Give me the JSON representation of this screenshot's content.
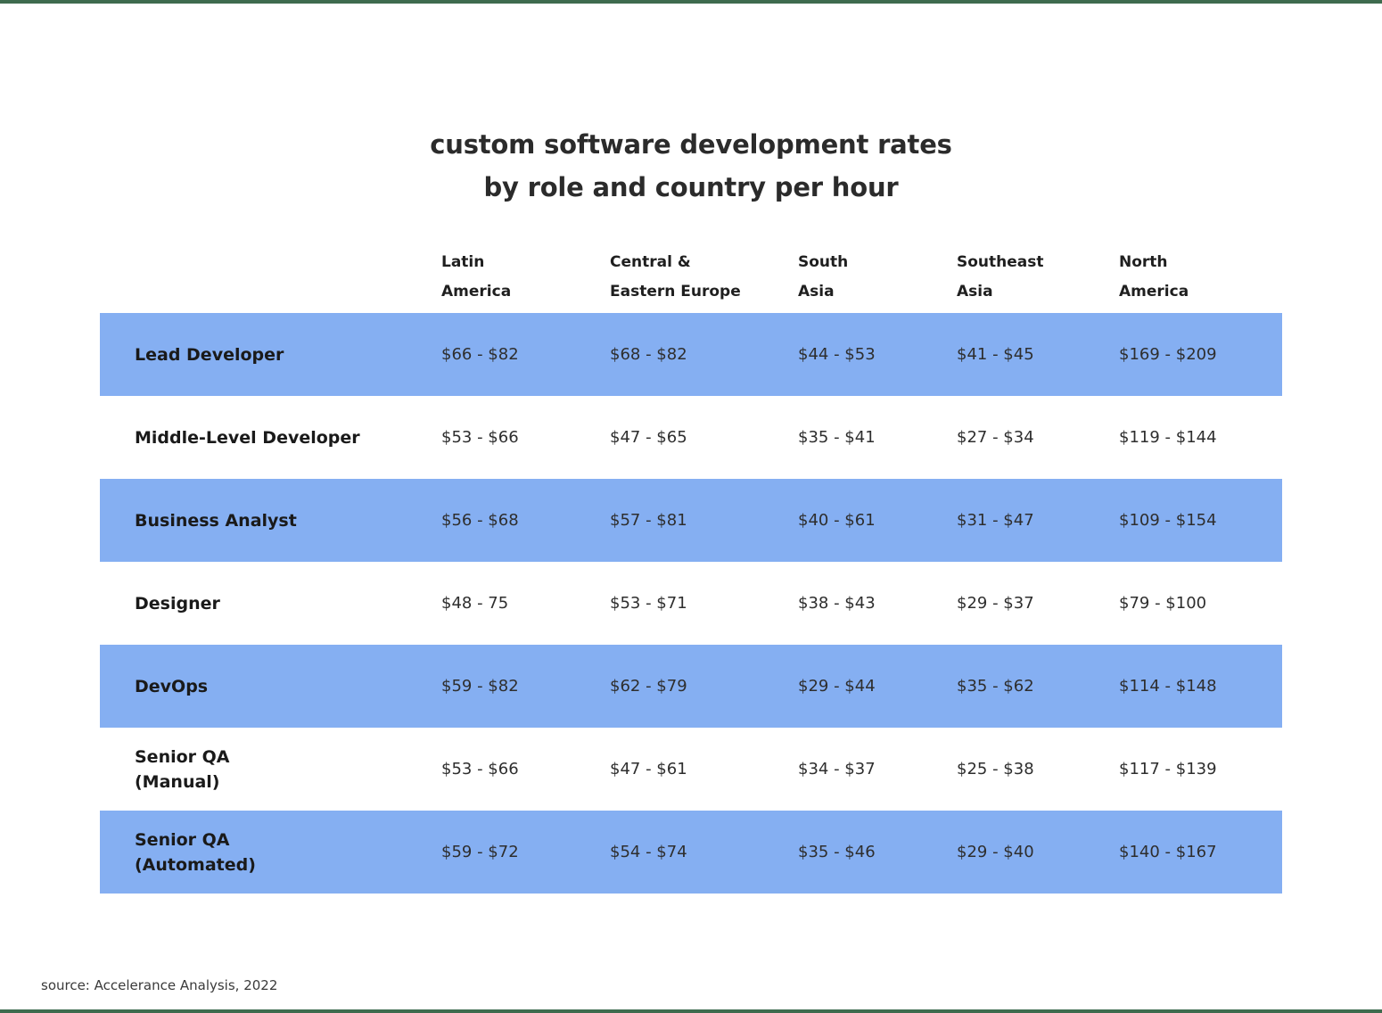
{
  "title": {
    "line1": "custom software development rates",
    "line2": "by role and country per hour"
  },
  "table_display": {
    "headers": [
      [
        "Latin",
        "America"
      ],
      [
        "Central &",
        "Eastern Europe"
      ],
      [
        "South",
        "Asia"
      ],
      [
        "Southeast",
        "Asia"
      ],
      [
        "North",
        "America"
      ]
    ],
    "roles": [
      [
        "Lead Developer"
      ],
      [
        "Middle-Level Developer"
      ],
      [
        "Business Analyst"
      ],
      [
        "Designer"
      ],
      [
        "DevOps"
      ],
      [
        "Senior QA",
        "(Manual)"
      ],
      [
        "Senior QA",
        "(Automated)"
      ]
    ]
  },
  "chart_data": {
    "type": "table",
    "title": "custom software development rates by role and country per hour",
    "columns": [
      "Latin America",
      "Central & Eastern Europe",
      "South Asia",
      "Southeast Asia",
      "North America"
    ],
    "rows": [
      {
        "role": "Lead Developer",
        "highlighted": true,
        "values": [
          "$66 - $82",
          "$68 - $82",
          "$44 - $53",
          "$41 - $45",
          "$169 - $209"
        ]
      },
      {
        "role": "Middle-Level Developer",
        "highlighted": false,
        "values": [
          "$53 - $66",
          "$47 - $65",
          "$35 - $41",
          "$27 - $34",
          "$119 - $144"
        ]
      },
      {
        "role": "Business Analyst",
        "highlighted": true,
        "values": [
          "$56 - $68",
          "$57 - $81",
          "$40 - $61",
          "$31 - $47",
          "$109 - $154"
        ]
      },
      {
        "role": "Designer",
        "highlighted": false,
        "values": [
          "$48 - 75",
          "$53 - $71",
          "$38 - $43",
          "$29 - $37",
          "$79 - $100"
        ]
      },
      {
        "role": "DevOps",
        "highlighted": true,
        "values": [
          "$59 - $82",
          "$62 - $79",
          "$29 - $44",
          "$35 - $62",
          "$114 - $148"
        ]
      },
      {
        "role": "Senior QA (Manual)",
        "highlighted": false,
        "values": [
          "$53 - $66",
          "$47 - $61",
          "$34 - $37",
          "$25 - $38",
          "$117 - $139"
        ]
      },
      {
        "role": "Senior QA (Automated)",
        "highlighted": true,
        "values": [
          "$59 - $72",
          "$54 - $74",
          "$35 - $46",
          "$29 - $40",
          "$140 - $167"
        ]
      }
    ],
    "units": "USD per hour",
    "source": "source: Accelerance Analysis, 2022"
  },
  "colors": {
    "row_highlight": "#85aff2",
    "frame_border": "#3e6b4e",
    "text_dark": "#1a1a1a"
  },
  "source_label": "source: Accelerance Analysis, 2022"
}
